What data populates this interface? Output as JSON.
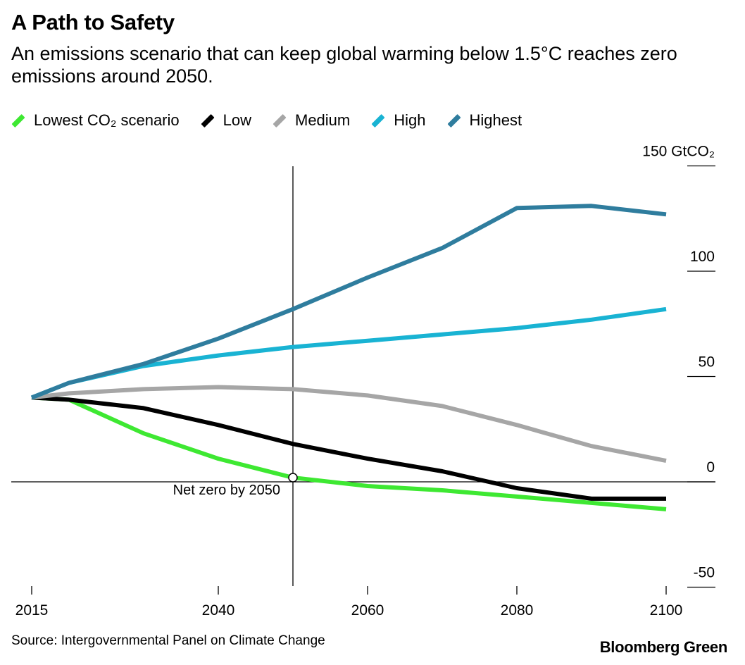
{
  "title": "A Path to Safety",
  "subtitle": "An emissions scenario that can keep global warming below 1.5°C reaches zero emissions around 2050.",
  "source": "Source: Intergovernmental Panel on Climate Change",
  "brand": "Bloomberg Green",
  "chart_data": {
    "type": "line",
    "title": "A Path to Safety",
    "xlabel": "",
    "ylabel": "",
    "y_unit_label": "150 GtCO₂",
    "xlim": [
      2015,
      2100
    ],
    "ylim": [
      -50,
      150
    ],
    "x_ticks": [
      2015,
      2040,
      2060,
      2080,
      2100
    ],
    "x_tick_labels": [
      "2015",
      "2040",
      "2060",
      "2080",
      "2100"
    ],
    "y_ticks": [
      -50,
      0,
      50,
      100,
      150
    ],
    "y_tick_labels": [
      "-50",
      "0",
      "50",
      "100",
      "150 GtCO₂"
    ],
    "grid": false,
    "legend_placement": "top",
    "annotation": {
      "x": 2050,
      "y": 2,
      "text": "Net zero by 2050"
    },
    "x": [
      2015,
      2020,
      2030,
      2040,
      2050,
      2060,
      2070,
      2080,
      2090,
      2100
    ],
    "series": [
      {
        "name": "Lowest CO₂ scenario",
        "color": "#3ee832",
        "values": [
          40,
          39,
          23,
          11,
          2,
          -2,
          -4,
          -7,
          -10,
          -13
        ]
      },
      {
        "name": "Low",
        "color": "#000000",
        "values": [
          40,
          39,
          35,
          27,
          18,
          11,
          5,
          -3,
          -8,
          -8
        ]
      },
      {
        "name": "Medium",
        "color": "#a6a6a6",
        "values": [
          40,
          42,
          44,
          45,
          44,
          41,
          36,
          27,
          17,
          10
        ]
      },
      {
        "name": "High",
        "color": "#19b3d3",
        "values": [
          40,
          47,
          55,
          60,
          64,
          67,
          70,
          73,
          77,
          82
        ]
      },
      {
        "name": "Highest",
        "color": "#2f7d9e",
        "values": [
          40,
          47,
          56,
          68,
          82,
          97,
          111,
          130,
          131,
          127
        ]
      }
    ]
  }
}
